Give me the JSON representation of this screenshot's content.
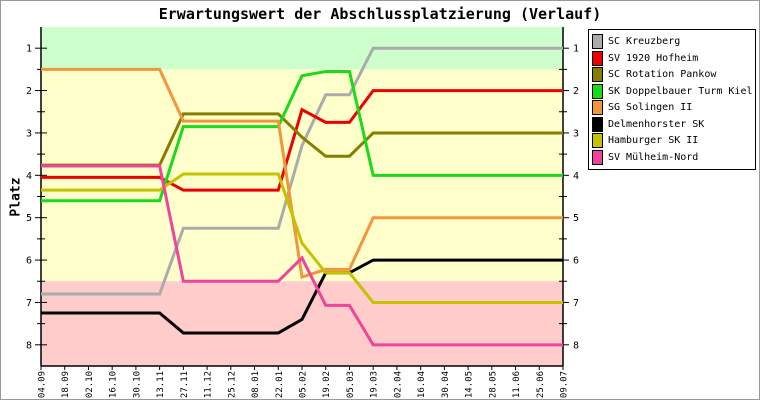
{
  "chart_data": {
    "type": "line",
    "title": "Erwartungswert der Abschlussplatzierung (Verlauf)",
    "ylabel": "Platz",
    "y_axis_inverted": true,
    "y_range": [
      0.5,
      8.5
    ],
    "y_ticks": [
      1,
      2,
      3,
      4,
      5,
      6,
      7,
      8
    ],
    "grid": false,
    "legend_position": "right",
    "x_tick_labels": [
      "04.09",
      "18.09",
      "02.10",
      "16.10",
      "30.10",
      "13.11",
      "27.11",
      "11.12",
      "25.12",
      "08.01",
      "22.01",
      "05.02",
      "19.02",
      "05.03",
      "19.03",
      "02.04",
      "16.04",
      "30.04",
      "14.05",
      "28.05",
      "11.06",
      "25.06",
      "09.07"
    ],
    "zones": [
      {
        "name": "top-zone",
        "from": 0.5,
        "to": 1.5,
        "color": "#CCFFCC"
      },
      {
        "name": "middle-zone",
        "from": 1.5,
        "to": 6.5,
        "color": "#FFFFCC"
      },
      {
        "name": "bottom-zone",
        "from": 6.5,
        "to": 8.5,
        "color": "#FFCCCC"
      }
    ],
    "series": [
      {
        "name": "SC Kreuzberg",
        "color": "#ABABAB",
        "values": [
          6.8,
          6.8,
          6.8,
          6.8,
          6.8,
          6.8,
          5.25,
          5.25,
          5.25,
          5.25,
          5.25,
          3.3,
          2.1,
          2.1,
          1,
          1,
          1,
          1,
          1,
          1,
          1,
          1,
          1
        ]
      },
      {
        "name": "SV 1920 Hofheim",
        "color": "#EE0000",
        "values": [
          4.05,
          4.05,
          4.05,
          4.05,
          4.05,
          4.05,
          4.35,
          4.35,
          4.35,
          4.35,
          4.35,
          2.45,
          2.75,
          2.75,
          2,
          2,
          2,
          2,
          2,
          2,
          2,
          2,
          2
        ]
      },
      {
        "name": "SC Rotation Pankow",
        "color": "#867E00",
        "values": [
          3.76,
          3.76,
          3.76,
          3.76,
          3.76,
          3.76,
          2.55,
          2.55,
          2.55,
          2.55,
          2.55,
          3.1,
          3.55,
          3.55,
          3,
          3,
          3,
          3,
          3,
          3,
          3,
          3,
          3
        ]
      },
      {
        "name": "SK Doppelbauer Turm Kiel",
        "color": "#1ADB1A",
        "values": [
          4.6,
          4.6,
          4.6,
          4.6,
          4.6,
          4.6,
          2.85,
          2.85,
          2.85,
          2.85,
          2.85,
          1.65,
          1.55,
          1.55,
          4,
          4,
          4,
          4,
          4,
          4,
          4,
          4,
          4
        ]
      },
      {
        "name": "SG Solingen II",
        "color": "#F2953C",
        "values": [
          1.5,
          1.5,
          1.5,
          1.5,
          1.5,
          1.5,
          2.72,
          2.72,
          2.72,
          2.72,
          2.72,
          6.4,
          6.22,
          6.22,
          5,
          5,
          5,
          5,
          5,
          5,
          5,
          5,
          5
        ]
      },
      {
        "name": "Delmenhorster SK",
        "color": "#000000",
        "values": [
          7.25,
          7.25,
          7.25,
          7.25,
          7.25,
          7.25,
          7.72,
          7.72,
          7.72,
          7.72,
          7.72,
          7.4,
          6.3,
          6.3,
          6,
          6,
          6,
          6,
          6,
          6,
          6,
          6,
          6
        ]
      },
      {
        "name": "Hamburger SK II",
        "color": "#C3C300",
        "values": [
          4.35,
          4.35,
          4.35,
          4.35,
          4.35,
          4.35,
          3.97,
          3.97,
          3.97,
          3.97,
          3.97,
          5.6,
          6.3,
          6.3,
          7,
          7,
          7,
          7,
          7,
          7,
          7,
          7,
          7
        ]
      },
      {
        "name": "SV Mülheim-Nord",
        "color": "#F0439C",
        "values": [
          3.78,
          3.78,
          3.78,
          3.78,
          3.78,
          3.78,
          6.5,
          6.5,
          6.5,
          6.5,
          6.5,
          5.95,
          7.07,
          7.07,
          8,
          8,
          8,
          8,
          8,
          8,
          8,
          8,
          8
        ]
      }
    ]
  }
}
